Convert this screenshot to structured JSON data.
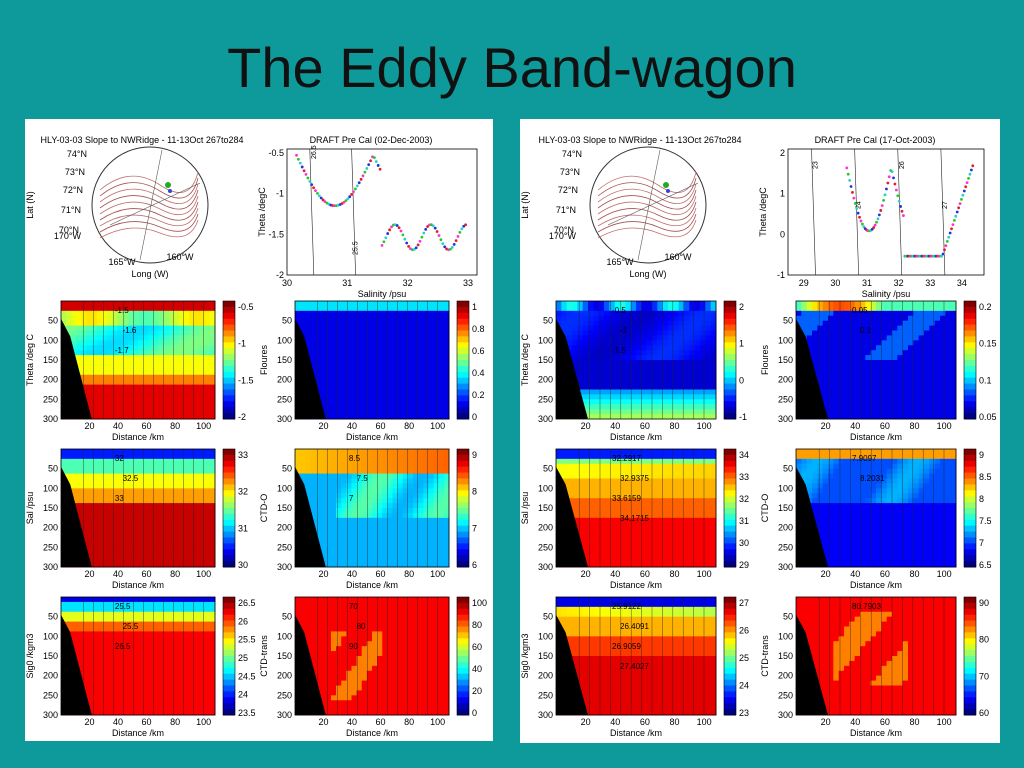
{
  "slide": {
    "title": "The Eddy Band-wagon"
  },
  "panels": [
    {
      "map": {
        "title": "HLY-03-03 Slope to NWRidge - 11-13Oct 267to284",
        "xlabel": "Long (W)",
        "ylabel": "Lat (N)",
        "lat_labels": [
          "74°N",
          "73°N",
          "72°N",
          "71°N",
          "70°N",
          "170°W"
        ],
        "lon_labels": [
          "165°W",
          "160°W"
        ]
      },
      "ts": {
        "title": "DRAFT Pre Cal (02-Dec-2003)",
        "xlabel": "Salinity /psu",
        "ylabel": "Theta /degC",
        "xticks": [
          "30",
          "31",
          "32",
          "33"
        ],
        "yticks": [
          "-0.5",
          "-1",
          "-1.5",
          "-2"
        ],
        "isopycnals": [
          "26.5",
          "25.5"
        ]
      },
      "sections": [
        {
          "ylabel": "Theta /deg C",
          "cbar": [
            "-0.5",
            "-1",
            "-1.5",
            "-2"
          ],
          "palette": "theta_left",
          "labels": [
            "-1.5",
            "-1.6",
            "-1.7"
          ]
        },
        {
          "ylabel": "Floures",
          "cbar": [
            "1",
            "0.8",
            "0.6",
            "0.4",
            "0.2",
            "0"
          ],
          "palette": "flo_left",
          "labels": []
        },
        {
          "ylabel": "Sal /psu",
          "cbar": [
            "33",
            "32",
            "31",
            "30"
          ],
          "palette": "sal_left",
          "labels": [
            "32",
            "32.5",
            "33"
          ]
        },
        {
          "ylabel": "CTD-O",
          "cbar": [
            "9",
            "8",
            "7",
            "6"
          ],
          "palette": "o2_left",
          "labels": [
            "8.5",
            "7.5",
            "7"
          ]
        },
        {
          "ylabel": "Sig0 /kgm3",
          "cbar": [
            "26.5",
            "26",
            "25.5",
            "25",
            "24.5",
            "24",
            "23.5"
          ],
          "palette": "sig_left",
          "labels": [
            "25.5",
            "25.5",
            "26.5"
          ]
        },
        {
          "ylabel": "CTD-trans",
          "cbar": [
            "100",
            "80",
            "60",
            "40",
            "20",
            "0"
          ],
          "palette": "tr_left",
          "labels": [
            "70",
            "80",
            "90"
          ]
        }
      ],
      "xlabel": "Distance /km",
      "xticks": [
        "20",
        "40",
        "60",
        "80",
        "100"
      ],
      "yticks": [
        "50",
        "100",
        "150",
        "200",
        "250",
        "300"
      ]
    },
    {
      "map": {
        "title": "HLY-03-03 Slope to NWRidge - 11-13Oct 267to284",
        "xlabel": "Long (W)",
        "ylabel": "Lat (N)",
        "lat_labels": [
          "74°N",
          "73°N",
          "72°N",
          "71°N",
          "70°N",
          "170°W"
        ],
        "lon_labels": [
          "165°W",
          "160°W"
        ]
      },
      "ts": {
        "title": "DRAFT Pre Cal (17-Oct-2003)",
        "xlabel": "Salinity /psu",
        "ylabel": "Theta /degC",
        "xticks": [
          "29",
          "30",
          "31",
          "32",
          "33",
          "34"
        ],
        "yticks": [
          "2",
          "1",
          "0",
          "-1"
        ],
        "isopycnals": [
          "23",
          "24",
          "26",
          "27"
        ]
      },
      "sections": [
        {
          "ylabel": "Theta /deg C",
          "cbar": [
            "2",
            "1",
            "0",
            "-1"
          ],
          "palette": "theta_right",
          "labels": [
            "-0.5",
            "-1",
            "-1.5"
          ]
        },
        {
          "ylabel": "Floures",
          "cbar": [
            "0.2",
            "0.15",
            "0.1",
            "0.05"
          ],
          "palette": "flo_right",
          "labels": [
            "0.05",
            "0.1"
          ]
        },
        {
          "ylabel": "Sal /psu",
          "cbar": [
            "34",
            "33",
            "32",
            "31",
            "30",
            "29"
          ],
          "palette": "sal_right",
          "labels": [
            "32.2917",
            "32.9375",
            "33.6159",
            "34.1715"
          ]
        },
        {
          "ylabel": "CTD-O",
          "cbar": [
            "9",
            "8.5",
            "8",
            "7.5",
            "7",
            "6.5"
          ],
          "palette": "o2_right",
          "labels": [
            "7.9097",
            "8.2031"
          ]
        },
        {
          "ylabel": "Sig0 /kgm3",
          "cbar": [
            "27",
            "26",
            "25",
            "24",
            "23"
          ],
          "palette": "sig_right",
          "labels": [
            "25.9122",
            "26.4091",
            "26.9059",
            "27.4027"
          ]
        },
        {
          "ylabel": "CTD-trans",
          "cbar": [
            "90",
            "80",
            "70",
            "60"
          ],
          "palette": "tr_right",
          "labels": [
            "80.7903"
          ]
        }
      ],
      "xlabel": "Distance /km",
      "xticks": [
        "20",
        "40",
        "60",
        "80",
        "100"
      ],
      "yticks": [
        "50",
        "100",
        "150",
        "200",
        "250",
        "300"
      ]
    }
  ]
}
